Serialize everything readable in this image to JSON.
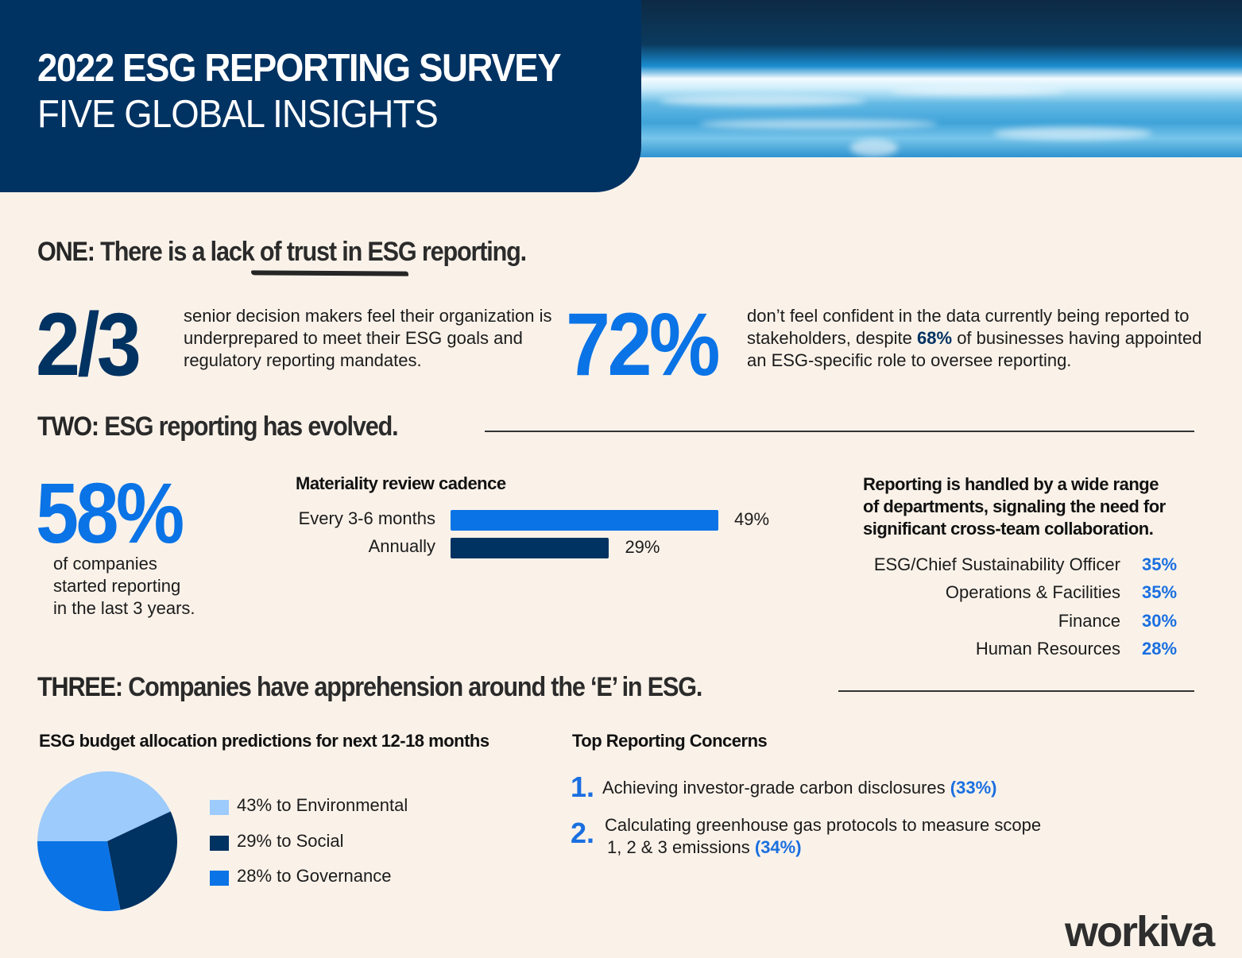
{
  "header": {
    "title": "2022 ESG REPORTING SURVEY",
    "subtitle": "FIVE GLOBAL INSIGHTS"
  },
  "section_one": {
    "lead": "ONE:",
    "heading_pre": "There is a ",
    "heading_emphasis": "lack of trust",
    "heading_post": " in ESG reporting.",
    "stat1": {
      "value": "2/3",
      "text": "senior decision makers feel their organization is underprepared to meet their ESG goals and regulatory reporting mandates."
    },
    "stat2": {
      "value": "72%",
      "text_pre": "don’t feel confident in the data currently being reported to stakeholders, despite ",
      "text_highlight": "68%",
      "text_post": " of businesses having appointed an ESG-specific role to oversee reporting."
    }
  },
  "section_two": {
    "lead": "TWO:",
    "heading": "ESG reporting has evolved.",
    "stat": {
      "value": "58%",
      "line1": "of companies",
      "line2": "started reporting",
      "line3": "in the last 3 years."
    },
    "cadence_title": "Materiality review cadence",
    "departments_title_l1": "Reporting is handled by a wide range",
    "departments_title_l2": "of departments, signaling the need for",
    "departments_title_l3": "significant cross-team collaboration.",
    "departments": [
      {
        "name": "ESG/Chief Sustainability Officer",
        "pct": "35%"
      },
      {
        "name": "Operations & Facilities",
        "pct": "35%"
      },
      {
        "name": "Finance",
        "pct": "30%"
      },
      {
        "name": "Human Resources",
        "pct": "28%"
      }
    ]
  },
  "section_three": {
    "lead": "THREE:",
    "heading": "Companies have apprehension around the ‘E’ in ESG.",
    "budget_title": "ESG budget allocation predictions for next 12-18 months",
    "concerns_title": "Top Reporting Concerns",
    "concerns": [
      {
        "num": "1.",
        "text": "Achieving investor-grade carbon disclosures ",
        "pct": "(33%)"
      },
      {
        "num": "2.",
        "line1": "Calculating greenhouse gas protocols to measure scope",
        "line2": "1, 2 & 3 emissions ",
        "pct": "(34%)"
      }
    ]
  },
  "colors": {
    "navy": "#003262",
    "blue": "#0a73e6",
    "light_blue": "#9dcbfb",
    "background": "#faf2e9"
  },
  "chart_data": [
    {
      "type": "bar",
      "title": "Materiality review cadence",
      "categories": [
        "Every 3-6 months",
        "Annually"
      ],
      "values": [
        49,
        29
      ],
      "value_labels": [
        "49%",
        "29%"
      ],
      "colors": [
        "#0a73e6",
        "#003262"
      ],
      "orientation": "horizontal",
      "xlim": [
        0,
        49
      ]
    },
    {
      "type": "pie",
      "title": "ESG budget allocation predictions for next 12-18 months",
      "categories": [
        "Environmental",
        "Social",
        "Governance"
      ],
      "values": [
        43,
        29,
        28
      ],
      "legend": [
        "43% to Environmental",
        "29% to Social",
        "28% to Governance"
      ],
      "colors": [
        "#9dcbfb",
        "#003262",
        "#0a73e6"
      ],
      "legend_position": "right"
    }
  ],
  "footer": {
    "logo": "workiva"
  }
}
